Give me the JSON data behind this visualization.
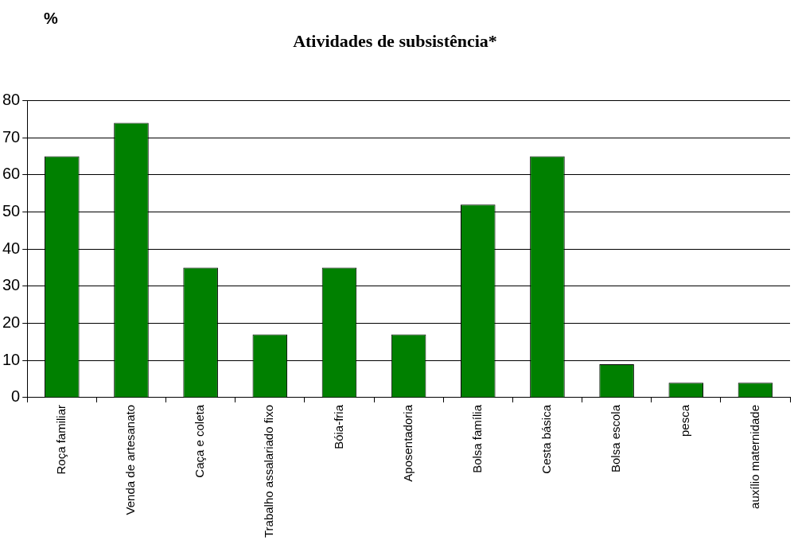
{
  "chart_data": {
    "type": "bar",
    "title": "Atividades de subsistência*",
    "ylabel": "%",
    "categories": [
      "Roça familiar",
      "Venda de artesanato",
      "Caça e coleta",
      "Trabalho assalariado fixo",
      "Bóia-fria",
      "Aposentadoria",
      "Bolsa família",
      "Cesta básica",
      "Bolsa escola",
      "pesca",
      "auxílio maternidade"
    ],
    "values": [
      65,
      74,
      35,
      17,
      35,
      17,
      52,
      65,
      9,
      4,
      4
    ],
    "color": "#008000",
    "ylim": [
      0,
      80
    ],
    "yticks": [
      0,
      10,
      20,
      30,
      40,
      50,
      60,
      70,
      80
    ],
    "grid": "y",
    "legend": false
  }
}
